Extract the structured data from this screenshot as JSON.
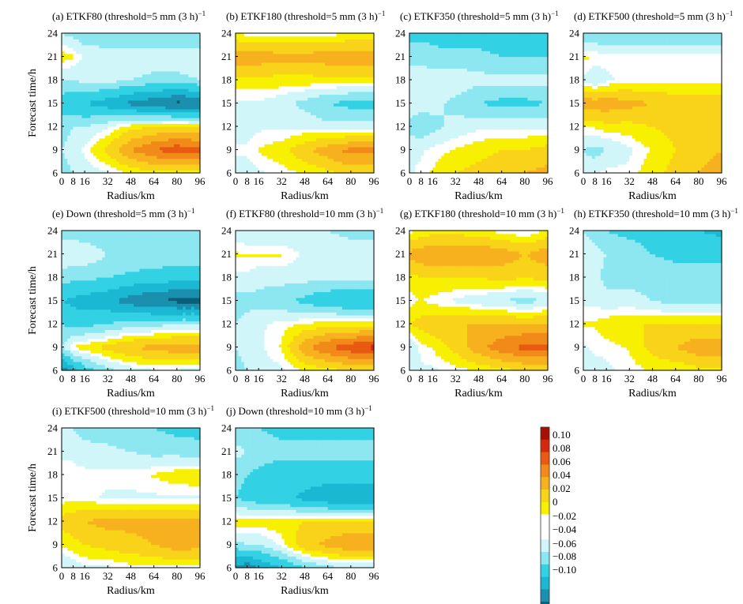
{
  "colorbar": {
    "levels": [
      -0.1,
      -0.08,
      -0.06,
      -0.04,
      -0.02,
      0,
      0.02,
      0.04,
      0.06,
      0.08,
      0.1
    ],
    "labels": [
      "0.10",
      "0.08",
      "0.06",
      "0.04",
      "0.02",
      "0",
      "−0.02",
      "−0.04",
      "−0.06",
      "−0.08",
      "−0.10"
    ],
    "colors": {
      "b5": "#0b5f78",
      "b4": "#1a8fae",
      "b3": "#1ab8d3",
      "b2": "#33d1e4",
      "b1": "#8ce7f1",
      "b0": "#d0f6fa",
      "zero": "#ffffff",
      "r1": "#f7f000",
      "r2": "#f9d21a",
      "r3": "#f7b11f",
      "r4": "#f28a1a",
      "r5": "#e85a12",
      "r6": "#d42a0c",
      "r7": "#a61005"
    }
  },
  "chart_data": [
    {
      "type": "heatmap",
      "title": "(a) ETKF80 (threshold=5 mm (3 h)",
      "title_superscript": "−1",
      "xlabel": "Radius/km",
      "ylabel": "Forecast time/h",
      "x_ticks": [
        0,
        8,
        16,
        32,
        48,
        64,
        80,
        96
      ],
      "y_ticks": [
        6,
        9,
        12,
        15,
        18,
        21,
        24
      ],
      "x": [
        0,
        8,
        16,
        32,
        48,
        64,
        80,
        96
      ],
      "y": [
        6,
        9,
        12,
        15,
        18,
        21,
        24
      ],
      "z": [
        [
          -0.02,
          -0.015,
          -0.01,
          -0.005,
          0.005,
          0.01,
          0.01,
          0.005
        ],
        [
          -0.015,
          -0.01,
          0,
          0.02,
          0.045,
          0.06,
          0.07,
          0.065
        ],
        [
          -0.02,
          -0.015,
          -0.015,
          -0.005,
          0.01,
          0.015,
          0.02,
          0.015
        ],
        [
          -0.04,
          -0.045,
          -0.05,
          -0.06,
          -0.075,
          -0.085,
          -0.095,
          -0.09
        ],
        [
          -0.015,
          -0.015,
          -0.01,
          -0.01,
          -0.015,
          -0.02,
          -0.02,
          -0.015
        ],
        [
          0.01,
          0.005,
          -0.005,
          -0.005,
          -0.005,
          -0.005,
          -0.005,
          -0.005
        ],
        [
          -0.015,
          -0.02,
          -0.025,
          -0.03,
          -0.03,
          -0.03,
          -0.03,
          -0.03
        ]
      ]
    },
    {
      "type": "heatmap",
      "title": "(b) ETKF180 (threshold=5 mm (3 h)",
      "title_superscript": "−1",
      "xlabel": "Radius/km",
      "ylabel": "",
      "x_ticks": [
        0,
        8,
        16,
        32,
        48,
        64,
        80,
        96
      ],
      "y_ticks": [
        6,
        9,
        12,
        15,
        18,
        21,
        24
      ],
      "x": [
        0,
        8,
        16,
        32,
        48,
        64,
        80,
        96
      ],
      "y": [
        6,
        9,
        12,
        15,
        18,
        21,
        24
      ],
      "z": [
        [
          -0.01,
          -0.01,
          -0.005,
          0,
          0.005,
          0.01,
          0.02,
          0.02
        ],
        [
          0,
          0,
          0.005,
          0.01,
          0.025,
          0.04,
          0.05,
          0.05
        ],
        [
          -0.015,
          -0.01,
          -0.005,
          -0.005,
          -0.005,
          -0.01,
          -0.01,
          -0.01
        ],
        [
          -0.005,
          -0.005,
          -0.005,
          -0.01,
          -0.02,
          -0.03,
          -0.035,
          -0.035
        ],
        [
          0.01,
          0.01,
          0.01,
          0.01,
          0.01,
          0.01,
          0.01,
          0.01
        ],
        [
          0.04,
          0.04,
          0.04,
          0.035,
          0.035,
          0.04,
          0.04,
          0.04
        ],
        [
          0.005,
          0,
          0,
          0,
          0,
          0,
          0.005,
          0.005
        ]
      ]
    },
    {
      "type": "heatmap",
      "title": "(c) ETKF350 (threshold=5 mm (3 h)",
      "title_superscript": "−1",
      "xlabel": "Radius/km",
      "ylabel": "",
      "x_ticks": [
        0,
        8,
        16,
        32,
        48,
        64,
        80,
        96
      ],
      "y_ticks": [
        6,
        9,
        12,
        15,
        18,
        21,
        24
      ],
      "x": [
        0,
        8,
        16,
        32,
        48,
        64,
        80,
        96
      ],
      "y": [
        6,
        9,
        12,
        15,
        18,
        21,
        24
      ],
      "z": [
        [
          -0.005,
          0,
          0.005,
          0.015,
          0.02,
          0.025,
          0.03,
          0.035
        ],
        [
          -0.005,
          -0.005,
          0,
          0.005,
          0.01,
          0.015,
          0.015,
          0.02
        ],
        [
          -0.02,
          -0.025,
          -0.02,
          -0.01,
          -0.005,
          -0.005,
          -0.005,
          -0.005
        ],
        [
          -0.005,
          -0.01,
          -0.01,
          -0.02,
          -0.03,
          -0.035,
          -0.035,
          -0.03
        ],
        [
          -0.005,
          -0.005,
          -0.005,
          -0.005,
          -0.01,
          -0.01,
          -0.01,
          -0.01
        ],
        [
          -0.02,
          -0.02,
          -0.025,
          -0.025,
          -0.025,
          -0.03,
          -0.03,
          -0.03
        ],
        [
          -0.035,
          -0.035,
          -0.035,
          -0.04,
          -0.04,
          -0.04,
          -0.045,
          -0.045
        ]
      ]
    },
    {
      "type": "heatmap",
      "title": "(d) ETKF500 (threshold=5 mm (3 h)",
      "title_superscript": "−1",
      "xlabel": "Radius/km",
      "ylabel": "",
      "x_ticks": [
        0,
        8,
        16,
        32,
        48,
        64,
        80,
        96
      ],
      "y_ticks": [
        6,
        9,
        12,
        15,
        18,
        21,
        24
      ],
      "x": [
        0,
        8,
        16,
        32,
        48,
        64,
        80,
        96
      ],
      "y": [
        6,
        9,
        12,
        15,
        18,
        21,
        24
      ],
      "z": [
        [
          -0.01,
          -0.005,
          0,
          0,
          0.01,
          0.02,
          0.03,
          0.035
        ],
        [
          -0.015,
          -0.02,
          -0.015,
          -0.005,
          0.005,
          0.015,
          0.025,
          0.03
        ],
        [
          0.005,
          0.005,
          0.01,
          0.01,
          0.015,
          0.02,
          0.02,
          0.02
        ],
        [
          0.04,
          0.04,
          0.04,
          0.035,
          0.03,
          0.025,
          0.025,
          0.025
        ],
        [
          -0.005,
          -0.015,
          -0.005,
          0,
          0,
          0,
          0,
          0
        ],
        [
          0.005,
          0.005,
          0,
          0,
          0,
          0,
          0,
          0
        ],
        [
          -0.025,
          -0.03,
          -0.03,
          -0.03,
          -0.03,
          -0.03,
          -0.03,
          -0.03
        ]
      ]
    },
    {
      "type": "heatmap",
      "title": "(e) Down (threshold=5 mm (3 h)",
      "title_superscript": "−1",
      "xlabel": "Radius/km",
      "ylabel": "Forecast time/h",
      "x_ticks": [
        0,
        8,
        16,
        32,
        48,
        64,
        80,
        96
      ],
      "y_ticks": [
        6,
        9,
        12,
        15,
        18,
        21,
        24
      ],
      "x": [
        0,
        8,
        16,
        32,
        48,
        64,
        80,
        96
      ],
      "y": [
        6,
        9,
        12,
        15,
        18,
        21,
        24
      ],
      "z": [
        [
          -0.085,
          -0.06,
          -0.04,
          -0.02,
          -0.01,
          -0.005,
          -0.005,
          -0.01
        ],
        [
          -0.015,
          0.005,
          0.01,
          0.02,
          0.03,
          0.035,
          0.04,
          0.04
        ],
        [
          -0.03,
          -0.035,
          -0.035,
          -0.03,
          -0.02,
          -0.02,
          -0.015,
          -0.015
        ],
        [
          -0.05,
          -0.055,
          -0.06,
          -0.065,
          -0.08,
          -0.09,
          -0.095,
          -0.095
        ],
        [
          -0.02,
          -0.025,
          -0.025,
          -0.03,
          -0.035,
          -0.04,
          -0.04,
          -0.04
        ],
        [
          -0.005,
          -0.005,
          -0.005,
          -0.015,
          -0.015,
          -0.015,
          -0.02,
          -0.02
        ],
        [
          -0.02,
          -0.02,
          -0.025,
          -0.025,
          -0.025,
          -0.025,
          -0.025,
          -0.025
        ]
      ]
    },
    {
      "type": "heatmap",
      "title": "(f) ETKF80 (threshold=10 mm (3 h)",
      "title_superscript": "−1",
      "xlabel": "Radius/km",
      "ylabel": "",
      "x_ticks": [
        0,
        8,
        16,
        32,
        48,
        64,
        80,
        96
      ],
      "y_ticks": [
        6,
        9,
        12,
        15,
        18,
        21,
        24
      ],
      "x": [
        0,
        8,
        16,
        32,
        48,
        64,
        80,
        96
      ],
      "y": [
        6,
        9,
        12,
        15,
        18,
        21,
        24
      ],
      "z": [
        [
          -0.02,
          -0.015,
          -0.01,
          -0.005,
          0.005,
          0.01,
          0.015,
          0.015
        ],
        [
          -0.015,
          -0.01,
          -0.005,
          0.005,
          0.04,
          0.06,
          0.07,
          0.08
        ],
        [
          -0.015,
          -0.01,
          -0.005,
          0,
          0.005,
          0.01,
          0.01,
          0.01
        ],
        [
          -0.02,
          -0.02,
          -0.02,
          -0.025,
          -0.035,
          -0.045,
          -0.05,
          -0.05
        ],
        [
          -0.005,
          -0.005,
          -0.01,
          -0.01,
          -0.01,
          -0.01,
          -0.01,
          -0.01
        ],
        [
          0.005,
          0.005,
          0.005,
          0.005,
          -0.005,
          -0.005,
          -0.005,
          -0.005
        ],
        [
          -0.01,
          -0.015,
          -0.015,
          -0.015,
          -0.015,
          -0.015,
          -0.02,
          -0.02
        ]
      ]
    },
    {
      "type": "heatmap",
      "title": "(g) ETKF180 (threshold=10 mm (3 h)",
      "title_superscript": "−1",
      "xlabel": "Radius/km",
      "ylabel": "",
      "x_ticks": [
        0,
        8,
        16,
        32,
        48,
        64,
        80,
        96
      ],
      "y_ticks": [
        6,
        9,
        12,
        15,
        18,
        21,
        24
      ],
      "x": [
        0,
        8,
        16,
        32,
        48,
        64,
        80,
        96
      ],
      "y": [
        6,
        9,
        12,
        15,
        18,
        21,
        24
      ],
      "z": [
        [
          -0.01,
          -0.005,
          -0.005,
          0,
          0.005,
          0.01,
          0.015,
          0.015
        ],
        [
          -0.015,
          0,
          0.005,
          0.02,
          0.04,
          0.055,
          0.065,
          0.065
        ],
        [
          0.015,
          0.02,
          0.025,
          0.03,
          0.03,
          0.03,
          0.03,
          0.03
        ],
        [
          0,
          0.005,
          0,
          -0.005,
          -0.01,
          -0.015,
          -0.02,
          -0.015
        ],
        [
          0.01,
          0.015,
          0.015,
          0.015,
          0.015,
          0.02,
          0.015,
          0.02
        ],
        [
          0.035,
          0.04,
          0.045,
          0.045,
          0.045,
          0.04,
          0.03,
          0.04
        ],
        [
          0,
          0.005,
          0.01,
          0.01,
          0.005,
          0,
          -0.005,
          0.005
        ]
      ]
    },
    {
      "type": "heatmap",
      "title": "(h) ETKF350 (threshold=10 mm (3 h)",
      "title_superscript": "−1",
      "xlabel": "Radius/km",
      "ylabel": "",
      "x_ticks": [
        0,
        8,
        16,
        32,
        48,
        64,
        80,
        96
      ],
      "y_ticks": [
        6,
        9,
        12,
        15,
        18,
        21,
        24
      ],
      "x": [
        0,
        8,
        16,
        32,
        48,
        64,
        80,
        96
      ],
      "y": [
        6,
        9,
        12,
        15,
        18,
        21,
        24
      ],
      "z": [
        [
          -0.015,
          -0.01,
          -0.005,
          0,
          0.005,
          0.005,
          0.01,
          0.01
        ],
        [
          -0.005,
          0,
          0,
          0.005,
          0.02,
          0.03,
          0.04,
          0.04
        ],
        [
          0.005,
          0.005,
          0.01,
          0.015,
          0.015,
          0.015,
          0.015,
          0.015
        ],
        [
          -0.005,
          -0.005,
          -0.01,
          -0.01,
          -0.015,
          -0.02,
          -0.02,
          -0.02
        ],
        [
          -0.005,
          -0.01,
          -0.02,
          -0.02,
          -0.02,
          -0.02,
          -0.02,
          -0.02
        ],
        [
          -0.005,
          -0.01,
          -0.015,
          -0.02,
          -0.03,
          -0.035,
          -0.035,
          -0.035
        ],
        [
          -0.015,
          -0.02,
          -0.03,
          -0.035,
          -0.04,
          -0.045,
          -0.05,
          -0.055
        ]
      ]
    },
    {
      "type": "heatmap",
      "title": "(i) ETKF500 (threshold=10 mm (3 h)",
      "title_superscript": "−1",
      "xlabel": "Radius/km",
      "ylabel": "Forecast time/h",
      "x_ticks": [
        0,
        8,
        16,
        32,
        48,
        64,
        80,
        96
      ],
      "y_ticks": [
        6,
        9,
        12,
        15,
        18,
        21,
        24
      ],
      "x": [
        0,
        8,
        16,
        32,
        48,
        64,
        80,
        96
      ],
      "y": [
        6,
        9,
        12,
        15,
        18,
        21,
        24
      ],
      "z": [
        [
          -0.015,
          -0.01,
          -0.005,
          -0.005,
          0,
          0,
          0,
          0
        ],
        [
          0.005,
          0.01,
          0.015,
          0.02,
          0.025,
          0.03,
          0.04,
          0.035
        ],
        [
          0.02,
          0.025,
          0.03,
          0.035,
          0.035,
          0.035,
          0.035,
          0.035
        ],
        [
          0,
          0,
          0,
          -0.005,
          -0.005,
          -0.005,
          -0.005,
          -0.005
        ],
        [
          0,
          0,
          0,
          0,
          0,
          0.005,
          0.01,
          0.012
        ],
        [
          -0.005,
          -0.005,
          -0.01,
          -0.01,
          -0.015,
          -0.02,
          -0.02,
          -0.025
        ],
        [
          -0.015,
          -0.015,
          -0.02,
          -0.025,
          -0.03,
          -0.03,
          -0.035,
          -0.035
        ]
      ]
    },
    {
      "type": "heatmap",
      "title": "(j) Down (threshold=10 mm (3 h)",
      "title_superscript": "−1",
      "xlabel": "Radius/km",
      "ylabel": "",
      "x_ticks": [
        0,
        8,
        16,
        32,
        48,
        64,
        80,
        96
      ],
      "y_ticks": [
        6,
        9,
        12,
        15,
        18,
        21,
        24
      ],
      "x": [
        0,
        8,
        16,
        32,
        48,
        64,
        80,
        96
      ],
      "y": [
        6,
        9,
        12,
        15,
        18,
        21,
        24
      ],
      "z": [
        [
          -0.075,
          -0.085,
          -0.07,
          -0.05,
          -0.03,
          -0.02,
          -0.015,
          -0.015
        ],
        [
          -0.02,
          -0.015,
          -0.015,
          0,
          0.025,
          0.035,
          0.045,
          0.045
        ],
        [
          0.01,
          0.01,
          0.01,
          0.01,
          0.015,
          0.015,
          0.015,
          0.015
        ],
        [
          -0.03,
          -0.035,
          -0.04,
          -0.045,
          -0.055,
          -0.065,
          -0.07,
          -0.07
        ],
        [
          -0.025,
          -0.03,
          -0.035,
          -0.04,
          -0.04,
          -0.04,
          -0.04,
          -0.04
        ],
        [
          -0.01,
          -0.015,
          -0.02,
          -0.025,
          -0.025,
          -0.025,
          -0.025,
          -0.025
        ],
        [
          -0.025,
          -0.03,
          -0.03,
          -0.035,
          -0.035,
          -0.035,
          -0.035,
          -0.035
        ]
      ]
    }
  ]
}
